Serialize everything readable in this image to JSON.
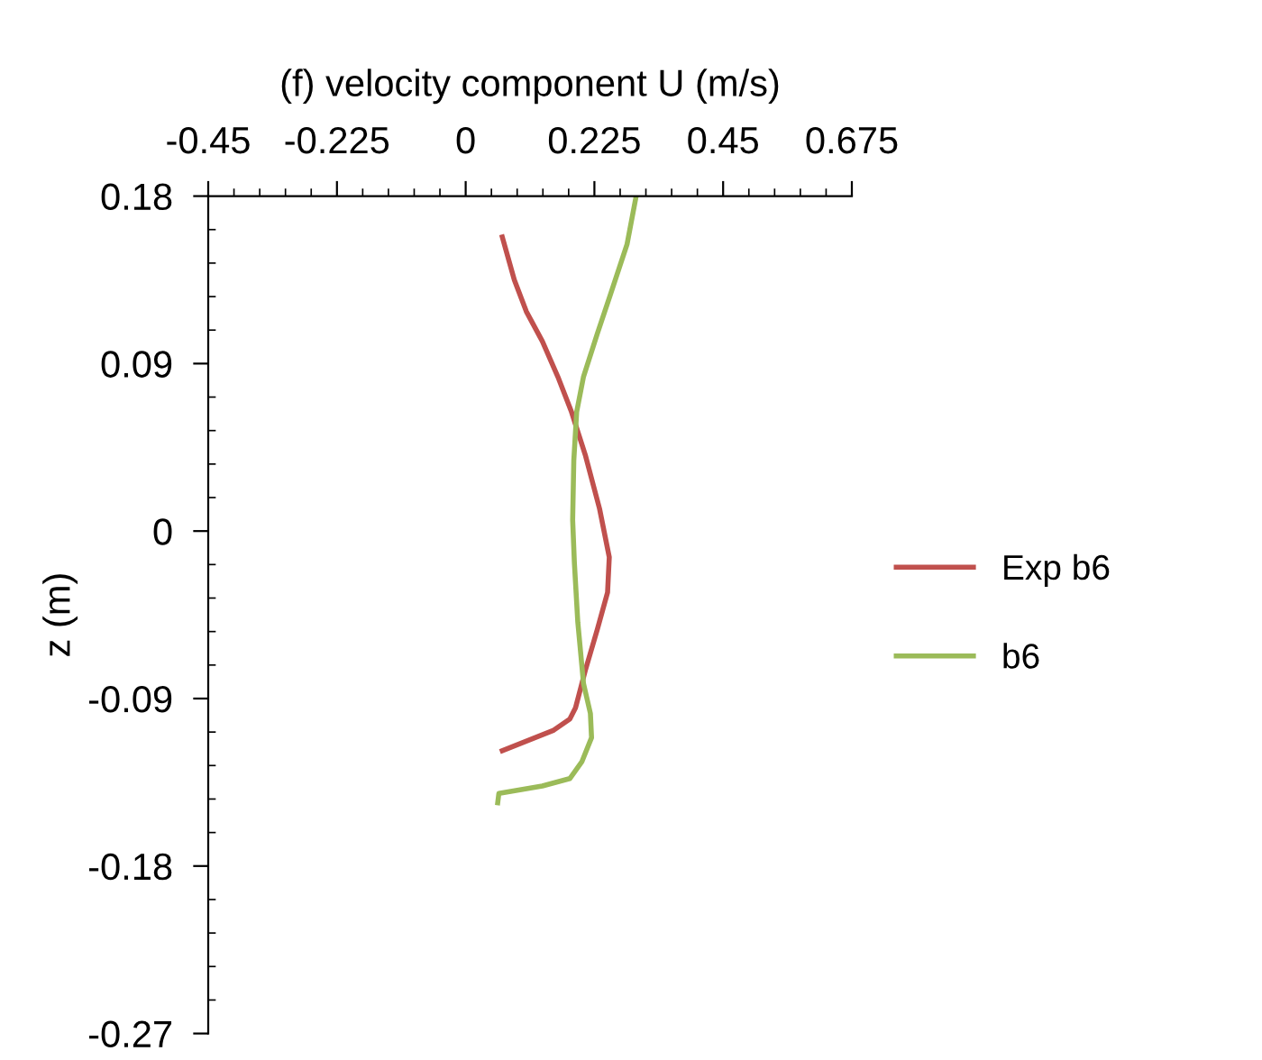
{
  "chart_data": {
    "type": "line",
    "xlabel": "(f) velocity component U (m/s)",
    "ylabel": "z (m)",
    "xlim": [
      -0.45,
      0.675
    ],
    "xticks": [
      -0.45,
      -0.225,
      0,
      0.225,
      0.45,
      0.675
    ],
    "ylim": [
      -0.27,
      0.18
    ],
    "yticks": [
      -0.27,
      -0.18,
      -0.09,
      0,
      0.09,
      0.18
    ],
    "grid": false,
    "legend": "right",
    "marker": "none",
    "line_style": "solid",
    "series": [
      {
        "name": "Exp b6",
        "color": "#c0504d",
        "x": [
          0.064,
          0.085,
          0.106,
          0.134,
          0.161,
          0.185,
          0.209,
          0.234,
          0.251,
          0.248,
          0.23,
          0.209,
          0.192,
          0.182,
          0.154,
          0.064
        ],
        "values": [
          0.158,
          0.135,
          0.118,
          0.102,
          0.083,
          0.064,
          0.041,
          0.012,
          -0.014,
          -0.033,
          -0.053,
          -0.075,
          -0.095,
          -0.101,
          -0.107,
          -0.118
        ]
      },
      {
        "name": "b6",
        "color": "#9bbb59",
        "x": [
          0.298,
          0.282,
          0.254,
          0.23,
          0.206,
          0.194,
          0.189,
          0.187,
          0.19,
          0.196,
          0.206,
          0.218,
          0.22,
          0.203,
          0.182,
          0.134,
          0.058,
          0.056
        ],
        "values": [
          0.18,
          0.154,
          0.128,
          0.106,
          0.083,
          0.064,
          0.038,
          0.006,
          -0.017,
          -0.049,
          -0.082,
          -0.098,
          -0.111,
          -0.124,
          -0.133,
          -0.137,
          -0.141,
          -0.146
        ]
      }
    ]
  }
}
